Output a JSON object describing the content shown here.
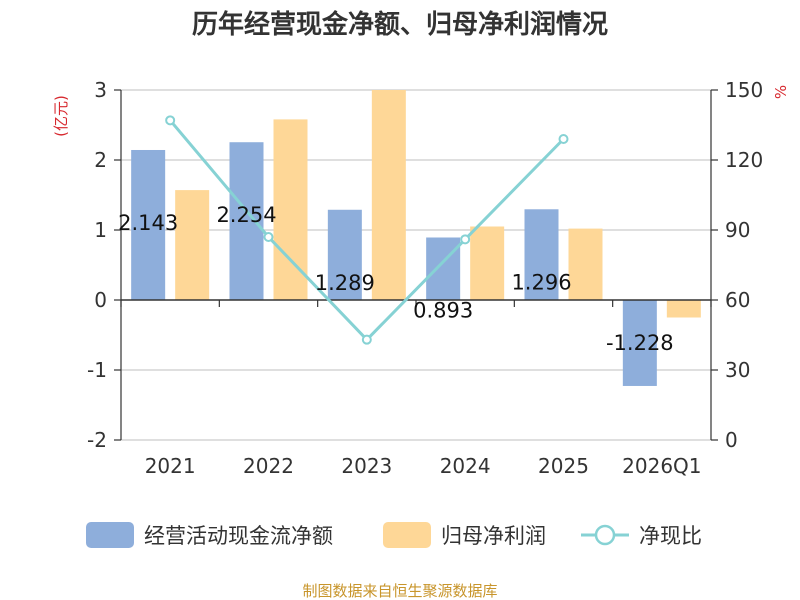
{
  "chart_data": {
    "type": "bar",
    "title": "历年经营现金净额、归母净利润情况",
    "categories": [
      "2021",
      "2022",
      "2023",
      "2024",
      "2025",
      "2026Q1"
    ],
    "series": [
      {
        "name": "经营活动现金流净额",
        "type": "bar",
        "axis": "left",
        "color": "#8eaedb",
        "values": [
          2.143,
          2.254,
          1.289,
          0.893,
          1.296,
          -1.228
        ],
        "labels": [
          "2.143",
          "2.254",
          "1.289",
          "0.893",
          "1.296",
          "-1.228"
        ]
      },
      {
        "name": "归母净利润",
        "type": "bar",
        "axis": "left",
        "color": "#fed797",
        "values": [
          1.57,
          2.58,
          3.0,
          1.05,
          1.02,
          -0.25
        ]
      },
      {
        "name": "净现比",
        "type": "line",
        "axis": "right",
        "color": "#86d2d4",
        "values": [
          137,
          87,
          43,
          86,
          129,
          null
        ]
      }
    ],
    "left_axis": {
      "unit": "(亿元)",
      "min": -2,
      "max": 3,
      "ticks": [
        "-2",
        "-1",
        "0",
        "1",
        "2",
        "3"
      ]
    },
    "right_axis": {
      "unit": "%",
      "min": 0,
      "max": 150,
      "ticks": [
        "0",
        "30",
        "60",
        "90",
        "120",
        "150"
      ]
    },
    "grid": true,
    "legend_position": "bottom"
  },
  "source": "制图数据来自恒生聚源数据库"
}
